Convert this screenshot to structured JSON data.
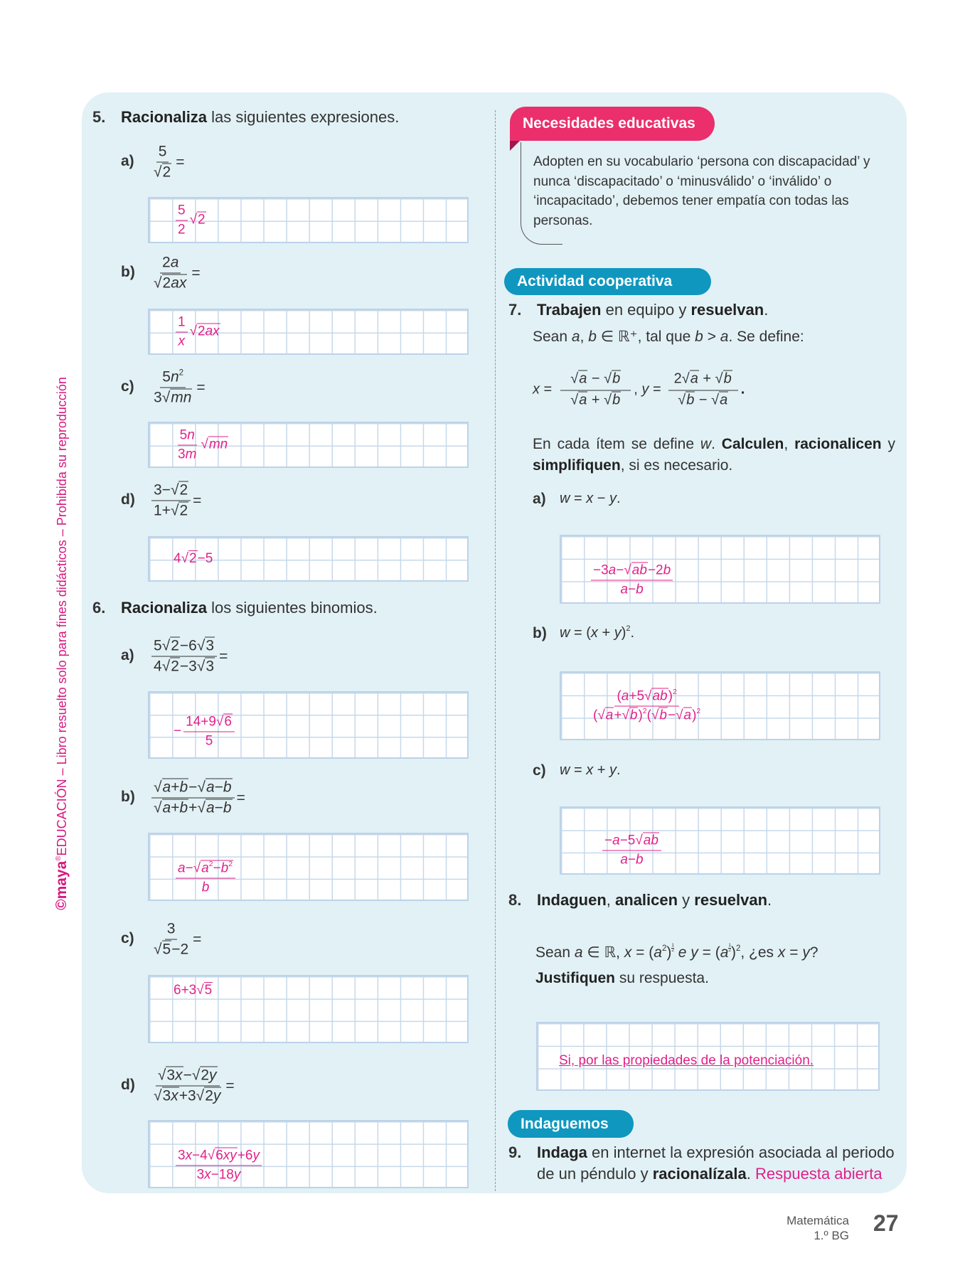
{
  "side_text": {
    "brand": "©maya",
    "reg": "®",
    "text": "EDUCACIÓN – Libro resuelto solo para fines didácticos – Prohibida su reproducción"
  },
  "ex5": {
    "number": "5.",
    "bold": "Racionaliza",
    "rest": " las siguientes expresiones.",
    "items": [
      {
        "label": "a)",
        "expr": {
          "num": "5",
          "den": "√{2}"
        },
        "answer": {
          "pre": "",
          "num": "5",
          "den": "2",
          "post": "√{2}"
        }
      },
      {
        "label": "b)",
        "expr": {
          "num": "2a",
          "den": "√{2ax}"
        },
        "answer": {
          "pre": "",
          "num": "1",
          "den": "x",
          "post": "√{2ax}"
        }
      },
      {
        "label": "c)",
        "expr": {
          "num": "5n^{2}",
          "den": "3√{mn}"
        },
        "answer": {
          "pre": "",
          "num": "5n",
          "den": "3m",
          "post": "√{mn}"
        }
      },
      {
        "label": "d)",
        "expr": {
          "num": "3−√{2}",
          "den": "1+√{2}"
        },
        "answer": {
          "pre": "4√{2}−5",
          "num": "",
          "den": "",
          "post": ""
        }
      }
    ]
  },
  "ex6": {
    "number": "6.",
    "bold": "Racionaliza",
    "rest": " los siguientes binomios.",
    "items": [
      {
        "label": "a)",
        "expr": {
          "num": "5√{2}−6√{3}",
          "den": "4√{2}−3√{3}"
        },
        "answer": {
          "pre": "−",
          "num": "14+9√{6}",
          "den": "5",
          "post": ""
        }
      },
      {
        "label": "b)",
        "expr": {
          "num": "√{a+b}−√{a−b}",
          "den": "√{a+b}+√{a−b}"
        },
        "answer": {
          "pre": "",
          "num": "a−√{a^{2}−b^{2}}",
          "den": "b",
          "post": ""
        }
      },
      {
        "label": "c)",
        "expr": {
          "num": "3",
          "den": "√{5}−2"
        },
        "answer": {
          "pre": "6+3√{5}",
          "num": "",
          "den": "",
          "post": ""
        }
      },
      {
        "label": "d)",
        "expr": {
          "num": "√{3x}−√{2y}",
          "den": "√{3x}+3√{2y}"
        },
        "answer": {
          "pre": "",
          "num": "3x−4√{6xy}+6y",
          "den": "3x−18y",
          "post": ""
        }
      }
    ]
  },
  "necesidades": {
    "title": "Necesidades educativas",
    "text": "Adopten en su vocabulario ‘persona con discapacidad’ y nunca ‘discapacitado’ o ‘minusválido’ o ‘inválido’ o ‘incapacitado’, debemos tener empatía con todas las personas."
  },
  "cooperativa": {
    "title": "Actividad cooperativa"
  },
  "ex7": {
    "number": "7.",
    "heading": [
      {
        "t": "Trabajen",
        "b": true
      },
      {
        "t": " en equipo y "
      },
      {
        "t": "resuelvan",
        "b": true
      },
      {
        "t": "."
      }
    ],
    "intro": [
      {
        "t": "Sean "
      },
      {
        "t": "a",
        "m": true
      },
      {
        "t": ", "
      },
      {
        "t": "b",
        "m": true
      },
      {
        "t": " ∈ ℝ⁺, tal que "
      },
      {
        "t": "b",
        "m": true
      },
      {
        "t": " > "
      },
      {
        "t": "a",
        "m": true
      },
      {
        "t": ". Se define:"
      }
    ],
    "formula": {
      "x_label": "x =",
      "x_num": "√{a} − √{b}",
      "x_den": "√{a} + √{b}",
      "sep": ", y =",
      "y_num": "2√{a} + √{b}",
      "y_den": "√{b} − √{a}",
      "end": "."
    },
    "instructions": [
      {
        "t": "En cada ítem se define "
      },
      {
        "t": "w",
        "m": true
      },
      {
        "t": ". "
      },
      {
        "t": "Calculen",
        "b": true
      },
      {
        "t": ", "
      },
      {
        "t": "racionalicen",
        "b": true
      },
      {
        "t": " y "
      },
      {
        "t": "simplifiquen",
        "b": true
      },
      {
        "t": ", si es necesario."
      }
    ],
    "items": [
      {
        "label": "a)",
        "expr": "w = x − y.",
        "answer": {
          "pre": "",
          "num": "−3a−√{ab}−2b",
          "den": "a−b",
          "post": ""
        }
      },
      {
        "label": "b)",
        "expr": "w = (x + y)^{2}.",
        "answer": {
          "pre": "",
          "num": "(a+5√{ab})^{2}",
          "den": "(√{a}+√{b})^{2}(√{b}−√{a})^{2}",
          "post": ""
        }
      },
      {
        "label": "c)",
        "expr": "w = x + y.",
        "answer": {
          "pre": "",
          "num": "−a−5√{ab}",
          "den": "a−b",
          "post": ""
        }
      }
    ]
  },
  "ex8": {
    "number": "8.",
    "heading": [
      {
        "t": "Indaguen",
        "b": true
      },
      {
        "t": ", "
      },
      {
        "t": "analicen",
        "b": true
      },
      {
        "t": " y "
      },
      {
        "t": "resuelvan",
        "b": true
      },
      {
        "t": "."
      }
    ],
    "body": [
      {
        "t": "Sean "
      },
      {
        "t": "a ∈ ℝ, x = (a^{2})^{F{1|2}} e y = (a^{F{1|2}})^{2}",
        "m": true
      },
      {
        "t": ", ¿es "
      },
      {
        "t": "x = y",
        "m": true
      },
      {
        "t": "? "
      },
      {
        "t": "Justifiquen",
        "b": true
      },
      {
        "t": " su respuesta."
      }
    ],
    "answer": "Si, por las propiedades de la potenciación."
  },
  "indaguemos": {
    "title": "Indaguemos"
  },
  "ex9": {
    "number": "9.",
    "body": [
      {
        "t": "Indaga",
        "b": true
      },
      {
        "t": " en internet la expresión asociada al periodo de un péndulo y "
      },
      {
        "t": "racionalízala",
        "b": true
      },
      {
        "t": ". "
      },
      {
        "t": "Respuesta abierta",
        "p": true
      }
    ]
  },
  "footer": {
    "subject": "Matemática",
    "grade": "1.º BG",
    "page": "27"
  },
  "colors": {
    "panel": "#e2f1f6",
    "answer": "#e0218a",
    "badge_pink": "#ea2f6c",
    "badge_teal": "#0f97bf",
    "side_text": "#d6187f"
  }
}
